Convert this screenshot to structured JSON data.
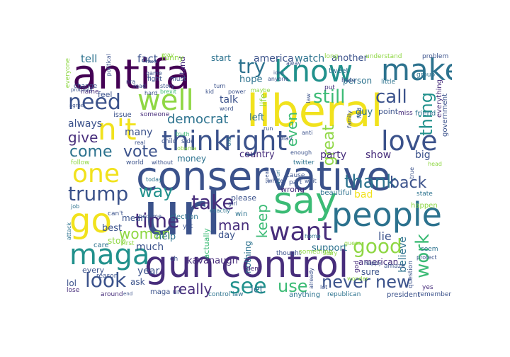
{
  "palette": {
    "yellow": "#f1e21d",
    "lime": "#8fd744",
    "green": "#3bbb75",
    "teal": "#21918c",
    "blue": "#2c728e",
    "indigo": "#3b528b",
    "purple": "#472d7b",
    "dark": "#440154"
  },
  "words": {
    "antifa": "antifa",
    "liberal": "liberal",
    "know": "know",
    "make": "make",
    "conservative": "conservative",
    "url": "url",
    "gun": "gun",
    "control": "control",
    "say": "say",
    "people": "people",
    "go": "go",
    "one": "one",
    "maga": "maga",
    "think": "think",
    "right": "right",
    "well": "well",
    "need": "need",
    "nt": "n't",
    "love": "love",
    "want": "want",
    "see": "see",
    "time": "time",
    "trump": "trump",
    "look": "look",
    "never": "never",
    "new": "new",
    "good": "good",
    "take": "take",
    "work": "work",
    "thing": "thing",
    "still": "still",
    "call": "call",
    "try": "try",
    "come": "come",
    "vote": "vote",
    "way": "way",
    "thank": "thank",
    "woman": "woman",
    "man": "man",
    "really": "really",
    "use": "use",
    "back": "back",
    "great": "great",
    "democrat": "democrat",
    "even": "even",
    "keep": "keep",
    "give": "give",
    "tell": "tell",
    "fact": "fact",
    "america": "america",
    "watch": "watch",
    "another": "another",
    "hope": "hope",
    "talk": "talk",
    "left": "left",
    "life": "life",
    "always": "always",
    "many": "many",
    "country": "country",
    "party": "party",
    "show": "show",
    "big": "big",
    "guy": "guy",
    "lie": "lie",
    "believe": "believe",
    "bad": "bad",
    "mean": "mean",
    "best": "best",
    "help": "help",
    "support": "support",
    "much": "much",
    "kavanaugh": "kavanaugh",
    "american": "american",
    "year": "year",
    "let": "let",
    "day": "day",
    "stop": "stop",
    "money": "money",
    "start": "start",
    "nothing": "nothing",
    "sure": "sure",
    "ask": "ask",
    "lol": "lol",
    "every": "every",
    "care": "care",
    "point": "point",
    "stand": "stand",
    "funny": "funny",
    "long": "long",
    "understand": "understand",
    "problem": "problem",
    "everyone": "everyone",
    "tweet": "tweet",
    "person": "person",
    "everything": "everything",
    "government": "government",
    "friend": "friend",
    "miss": "miss",
    "hate": "hate",
    "put": "put",
    "little": "little",
    "group": "group",
    "feel": "feel",
    "name": "name",
    "issue": "issue",
    "someone": "someone",
    "world": "world",
    "follow": "follow",
    "twitter": "twitter",
    "please": "please",
    "wrong": "wrong",
    "beautiful": "beautiful",
    "state": "state",
    "happen": "happen",
    "head": "head",
    "anything": "anything",
    "president": "president",
    "republican": "republican",
    "remember": "remember",
    "yes": "yes",
    "thought": "thought",
    "something": "something",
    "sorry": "sorry",
    "control_law": "control law",
    "maga_url": "maga url",
    "around": "around",
    "lose": "lose",
    "cant": "can't",
    "job": "job",
    "attack": "attack",
    "first": "first",
    "reason": "reason",
    "exactly": "exactly",
    "election": "election",
    "become": "become",
    "win": "win",
    "actually": "actually",
    "yet": "yet",
    "oh": "oh",
    "dem": "dem",
    "already": "already",
    "lot": "lot",
    "god": "god",
    "amaze": "amaze",
    "question": "question",
    "seem": "seem",
    "protect": "protect",
    "happy": "happy",
    "wonder": "wonder",
    "guess": "guess",
    "home": "home",
    "wait": "wait",
    "cause": "cause",
    "part": "part",
    "white": "white",
    "url_url": "url url",
    "speak": "speak",
    "today": "today",
    "without": "without",
    "true": "true",
    "girl": "girl",
    "play": "play",
    "enough": "enough",
    "run": "run",
    "anti": "anti",
    "family": "family",
    "find": "find",
    "real": "real",
    "child": "child",
    "obama": "obama",
    "side": "side",
    "truth": "truth",
    "kid": "kid",
    "hard": "hard",
    "brexit": "brexit",
    "fight": "fight",
    "must": "must",
    "game": "game",
    "nra": "nra",
    "next": "next",
    "political": "political",
    "probably": "probably",
    "change": "change",
    "story": "story",
    "read": "read",
    "turn": "turn",
    "power": "power",
    "word": "word",
    "old": "old",
    "maybe": "maybe",
    "anyone": "anyone",
    "idea": "idea",
    "away": "away",
    "law": "law",
    "may": "may",
    "agree": "agree",
    "end": "end"
  }
}
